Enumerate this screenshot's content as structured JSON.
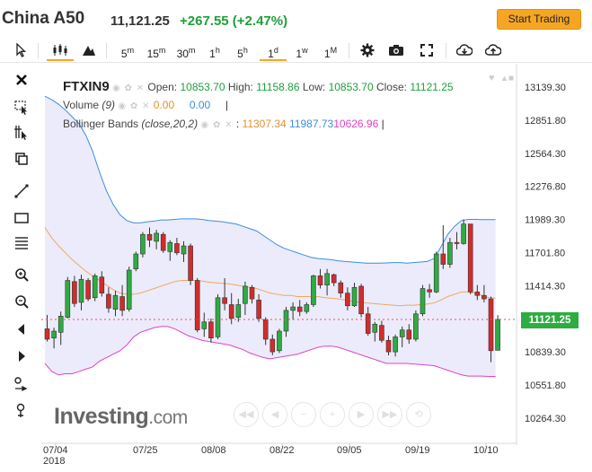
{
  "header": {
    "title": "China A50",
    "price": "11,121.25",
    "change": "+267.55 (+2.47%)",
    "start_trading": "Start Trading"
  },
  "toolbar": {
    "intervals": [
      {
        "num": "5",
        "unit": "m",
        "active": false
      },
      {
        "num": "15",
        "unit": "m",
        "active": false
      },
      {
        "num": "30",
        "unit": "m",
        "active": false
      },
      {
        "num": "1",
        "unit": "h",
        "active": false
      },
      {
        "num": "5",
        "unit": "h",
        "active": false
      },
      {
        "num": "1",
        "unit": "d",
        "active": true
      },
      {
        "num": "1",
        "unit": "w",
        "active": false
      },
      {
        "num": "1",
        "unit": "M",
        "active": false
      }
    ],
    "icons": [
      "cursor-icon",
      "candles-icon",
      "mountain-icon",
      "gear-icon",
      "camera-icon",
      "fullscreen-icon",
      "cloud-download-icon",
      "cloud-upload-icon"
    ]
  },
  "left_tools": [
    "close-icon",
    "select-icon",
    "crosshair-icon",
    "clone-icon",
    "line-icon",
    "rectangle-icon",
    "fib-icon",
    "zoom-in-icon",
    "zoom-out-icon",
    "arrow-left-icon",
    "arrow-right-icon",
    "magnet-icon",
    "magnet-alt-icon"
  ],
  "legend": {
    "symbol": "FTXIN9",
    "open_label": "Open:",
    "open": "10853.70",
    "high_label": "High:",
    "high": "11158.86",
    "low_label": "Low:",
    "low": "10853.70",
    "close_label": "Close:",
    "close": "11121.25",
    "volume_label": "Volume",
    "volume_param": "(9)",
    "volume_a": "0.00",
    "volume_b": "0.00",
    "bb_label": "Bollinger Bands",
    "bb_param": "(close,20,2)",
    "bb_mid": "11307.34",
    "bb_upper": "11987.73",
    "bb_lower": "10626.96"
  },
  "current_price_tag": "11121.25",
  "watermark": {
    "brand": "Investing",
    "suffix": ".com"
  },
  "colors": {
    "up": "#2eac42",
    "down": "#d42b2b",
    "upper_band": "#3a8ee0",
    "lower_band": "#e040c8",
    "mid_band": "#f0a860",
    "band_fill": "#ecebfb",
    "accent": "#f6a623"
  },
  "chart_data": {
    "type": "candlestick",
    "ylim": [
      10100,
      13250
    ],
    "y_ticks": [
      "13139.30",
      "12851.80",
      "12564.30",
      "12276.80",
      "11989.30",
      "11701.80",
      "11414.30",
      "11126.80",
      "10839.30",
      "10551.80",
      "10264.30"
    ],
    "x_ticks": [
      "07/04",
      "07/25",
      "08/08",
      "08/22",
      "09/05",
      "09/19",
      "10/10"
    ],
    "x_year": "2018",
    "candles": [
      {
        "o": 11040,
        "h": 11160,
        "l": 10930,
        "c": 10950
      },
      {
        "o": 10960,
        "h": 11050,
        "l": 10870,
        "c": 11020
      },
      {
        "o": 11010,
        "h": 11190,
        "l": 10900,
        "c": 11150
      },
      {
        "o": 11140,
        "h": 11490,
        "l": 11130,
        "c": 11460
      },
      {
        "o": 11450,
        "h": 11500,
        "l": 11230,
        "c": 11260
      },
      {
        "o": 11270,
        "h": 11510,
        "l": 11200,
        "c": 11470
      },
      {
        "o": 11460,
        "h": 11480,
        "l": 11280,
        "c": 11300
      },
      {
        "o": 11310,
        "h": 11520,
        "l": 11280,
        "c": 11500
      },
      {
        "o": 11490,
        "h": 11540,
        "l": 11320,
        "c": 11350
      },
      {
        "o": 11340,
        "h": 11400,
        "l": 11180,
        "c": 11220
      },
      {
        "o": 11210,
        "h": 11370,
        "l": 11150,
        "c": 11330
      },
      {
        "o": 11320,
        "h": 11420,
        "l": 11150,
        "c": 11200
      },
      {
        "o": 11210,
        "h": 11580,
        "l": 11190,
        "c": 11550
      },
      {
        "o": 11560,
        "h": 11710,
        "l": 11540,
        "c": 11690
      },
      {
        "o": 11690,
        "h": 11880,
        "l": 11660,
        "c": 11860
      },
      {
        "o": 11860,
        "h": 11920,
        "l": 11750,
        "c": 11810
      },
      {
        "o": 11800,
        "h": 11900,
        "l": 11730,
        "c": 11870
      },
      {
        "o": 11860,
        "h": 11880,
        "l": 11700,
        "c": 11720
      },
      {
        "o": 11710,
        "h": 11810,
        "l": 11630,
        "c": 11790
      },
      {
        "o": 11780,
        "h": 11830,
        "l": 11680,
        "c": 11700
      },
      {
        "o": 11690,
        "h": 11800,
        "l": 11620,
        "c": 11760
      },
      {
        "o": 11760,
        "h": 11780,
        "l": 11420,
        "c": 11460
      },
      {
        "o": 11460,
        "h": 11480,
        "l": 11010,
        "c": 11030
      },
      {
        "o": 11040,
        "h": 11180,
        "l": 10970,
        "c": 11100
      },
      {
        "o": 11100,
        "h": 11130,
        "l": 10920,
        "c": 10960
      },
      {
        "o": 10970,
        "h": 11340,
        "l": 10950,
        "c": 11310
      },
      {
        "o": 11310,
        "h": 11480,
        "l": 11200,
        "c": 11260
      },
      {
        "o": 11250,
        "h": 11350,
        "l": 11080,
        "c": 11130
      },
      {
        "o": 11140,
        "h": 11300,
        "l": 11100,
        "c": 11250
      },
      {
        "o": 11260,
        "h": 11450,
        "l": 11160,
        "c": 11410
      },
      {
        "o": 11400,
        "h": 11420,
        "l": 11260,
        "c": 11300
      },
      {
        "o": 11290,
        "h": 11340,
        "l": 11100,
        "c": 11130
      },
      {
        "o": 11120,
        "h": 11140,
        "l": 10900,
        "c": 10950
      },
      {
        "o": 10950,
        "h": 10990,
        "l": 10810,
        "c": 10840
      },
      {
        "o": 10850,
        "h": 11040,
        "l": 10830,
        "c": 11020
      },
      {
        "o": 11020,
        "h": 11230,
        "l": 10970,
        "c": 11200
      },
      {
        "o": 11200,
        "h": 11270,
        "l": 11120,
        "c": 11230
      },
      {
        "o": 11230,
        "h": 11290,
        "l": 11150,
        "c": 11190
      },
      {
        "o": 11190,
        "h": 11270,
        "l": 11170,
        "c": 11250
      },
      {
        "o": 11250,
        "h": 11510,
        "l": 11230,
        "c": 11500
      },
      {
        "o": 11500,
        "h": 11560,
        "l": 11390,
        "c": 11420
      },
      {
        "o": 11420,
        "h": 11560,
        "l": 11330,
        "c": 11520
      },
      {
        "o": 11510,
        "h": 11520,
        "l": 11410,
        "c": 11440
      },
      {
        "o": 11440,
        "h": 11460,
        "l": 11310,
        "c": 11350
      },
      {
        "o": 11350,
        "h": 11400,
        "l": 11200,
        "c": 11240
      },
      {
        "o": 11240,
        "h": 11440,
        "l": 11230,
        "c": 11400
      },
      {
        "o": 11410,
        "h": 11430,
        "l": 11140,
        "c": 11170
      },
      {
        "o": 11170,
        "h": 11230,
        "l": 10980,
        "c": 11000
      },
      {
        "o": 11010,
        "h": 11100,
        "l": 10930,
        "c": 11080
      },
      {
        "o": 11070,
        "h": 11110,
        "l": 10920,
        "c": 10940
      },
      {
        "o": 10940,
        "h": 10980,
        "l": 10810,
        "c": 10840
      },
      {
        "o": 10840,
        "h": 10990,
        "l": 10800,
        "c": 10970
      },
      {
        "o": 10970,
        "h": 11060,
        "l": 10880,
        "c": 11030
      },
      {
        "o": 11030,
        "h": 11080,
        "l": 10910,
        "c": 10950
      },
      {
        "o": 10950,
        "h": 11200,
        "l": 10930,
        "c": 11170
      },
      {
        "o": 11170,
        "h": 11420,
        "l": 11150,
        "c": 11390
      },
      {
        "o": 11380,
        "h": 11430,
        "l": 11310,
        "c": 11360
      },
      {
        "o": 11360,
        "h": 11710,
        "l": 11350,
        "c": 11690
      },
      {
        "o": 11690,
        "h": 11940,
        "l": 11560,
        "c": 11600
      },
      {
        "o": 11600,
        "h": 11830,
        "l": 11570,
        "c": 11790
      },
      {
        "o": 11790,
        "h": 11880,
        "l": 11730,
        "c": 11780
      },
      {
        "o": 11780,
        "h": 11990,
        "l": 11770,
        "c": 11950
      },
      {
        "o": 11950,
        "h": 11950,
        "l": 11340,
        "c": 11360
      },
      {
        "o": 11360,
        "h": 11420,
        "l": 11290,
        "c": 11330
      },
      {
        "o": 11330,
        "h": 11420,
        "l": 11270,
        "c": 11300
      },
      {
        "o": 11300,
        "h": 11320,
        "l": 10750,
        "c": 10850
      },
      {
        "o": 10853.7,
        "h": 11158.86,
        "l": 10853.7,
        "c": 11121.25
      }
    ],
    "upper_band": [
      13060,
      13030,
      12990,
      12940,
      12880,
      12820,
      12720,
      12580,
      12400,
      12240,
      12120,
      12030,
      11980,
      11960,
      11960,
      11970,
      11975,
      11985,
      11985,
      11990,
      11995,
      11995,
      11995,
      11990,
      11980,
      11975,
      11970,
      11960,
      11950,
      11930,
      11910,
      11890,
      11850,
      11810,
      11770,
      11740,
      11720,
      11700,
      11680,
      11660,
      11650,
      11645,
      11640,
      11630,
      11625,
      11620,
      11615,
      11610,
      11610,
      11610,
      11612,
      11615,
      11615,
      11610,
      11615,
      11620,
      11625,
      11650,
      11750,
      11860,
      11930,
      11980,
      11990,
      11990,
      11988,
      11987.73,
      11987.73
    ],
    "middle_band": [
      11920,
      11830,
      11760,
      11700,
      11640,
      11590,
      11540,
      11500,
      11460,
      11420,
      11380,
      11350,
      11340,
      11340,
      11350,
      11370,
      11390,
      11410,
      11430,
      11450,
      11460,
      11460,
      11460,
      11455,
      11445,
      11440,
      11435,
      11430,
      11420,
      11410,
      11400,
      11390,
      11370,
      11350,
      11340,
      11330,
      11330,
      11320,
      11320,
      11320,
      11320,
      11310,
      11305,
      11300,
      11290,
      11280,
      11270,
      11265,
      11260,
      11255,
      11250,
      11245,
      11240,
      11245,
      11245,
      11250,
      11255,
      11265,
      11290,
      11320,
      11340,
      11360,
      11360,
      11350,
      11330,
      11310,
      11307.34
    ],
    "lower_band": [
      10740,
      10670,
      10640,
      10650,
      10650,
      10670,
      10690,
      10710,
      10760,
      10790,
      10820,
      10850,
      10900,
      10970,
      11010,
      11030,
      11050,
      11060,
      11060,
      11040,
      11010,
      10980,
      10960,
      10940,
      10930,
      10920,
      10910,
      10900,
      10880,
      10860,
      10830,
      10810,
      10790,
      10780,
      10790,
      10800,
      10810,
      10820,
      10840,
      10860,
      10880,
      10890,
      10890,
      10880,
      10860,
      10840,
      10820,
      10800,
      10780,
      10760,
      10740,
      10740,
      10740,
      10740,
      10735,
      10730,
      10725,
      10720,
      10700,
      10680,
      10660,
      10640,
      10630,
      10630,
      10630,
      10626.96,
      10626.96
    ]
  }
}
